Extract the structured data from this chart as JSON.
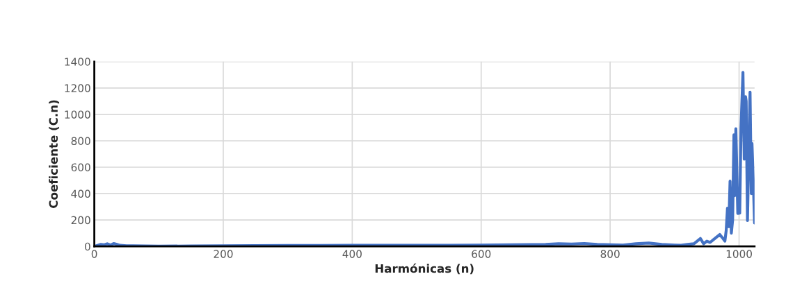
{
  "chart_data": {
    "type": "line",
    "xlabel": "Harmónicas (n)",
    "ylabel": "Coeficiente (C.n)",
    "x": [
      0,
      5,
      10,
      15,
      20,
      25,
      30,
      35,
      40,
      50,
      60,
      80,
      100,
      150,
      200,
      250,
      300,
      350,
      400,
      450,
      500,
      550,
      600,
      650,
      700,
      720,
      740,
      760,
      780,
      800,
      820,
      840,
      860,
      880,
      900,
      910,
      920,
      930,
      940,
      945,
      950,
      955,
      960,
      965,
      970,
      975,
      978,
      980,
      982,
      984,
      986,
      988,
      990,
      992,
      993,
      995,
      998,
      1001,
      1003,
      1006,
      1008,
      1010,
      1011,
      1013,
      1015,
      1017,
      1019,
      1020,
      1022,
      1024
    ],
    "series": [
      {
        "color": "#4472c4",
        "values": [
          0,
          8,
          15,
          12,
          20,
          10,
          22,
          15,
          8,
          5,
          4,
          3,
          2,
          3,
          5,
          6,
          7,
          7,
          8,
          8,
          9,
          9,
          10,
          12,
          15,
          20,
          18,
          22,
          15,
          12,
          10,
          20,
          25,
          15,
          10,
          8,
          15,
          20,
          60,
          20,
          40,
          30,
          50,
          70,
          90,
          60,
          40,
          120,
          289,
          150,
          494,
          100,
          200,
          845,
          384,
          891,
          250,
          252,
          900,
          1318,
          661,
          1134,
          1100,
          196,
          700,
          1169,
          400,
          780,
          500,
          178
        ]
      }
    ],
    "xlim": [
      0,
      1024
    ],
    "xticks": [
      0,
      200,
      400,
      600,
      800,
      1000
    ],
    "ylim": [
      0,
      1400
    ],
    "yticks": [
      0,
      200,
      400,
      600,
      800,
      1000,
      1200,
      1400
    ],
    "grid": true,
    "legend": false
  }
}
